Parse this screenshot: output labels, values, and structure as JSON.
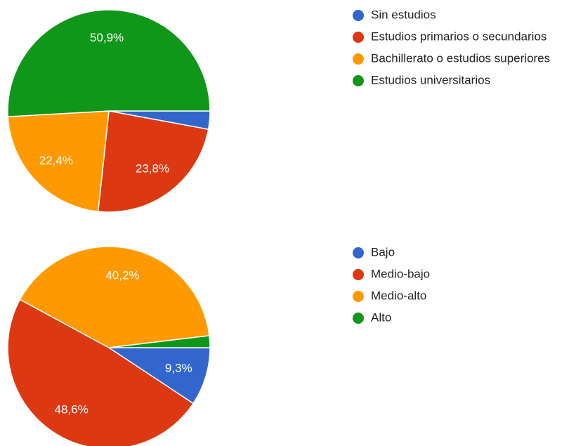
{
  "chart_data": [
    {
      "type": "pie",
      "categories": [
        "Sin estudios",
        "Estudios primarios o secundarios",
        "Bachillerato o estudios superiores",
        "Estudios universitarios"
      ],
      "values": [
        2.9,
        23.8,
        22.4,
        50.9
      ],
      "value_labels": [
        null,
        "23,8%",
        "22,4%",
        "50,9%"
      ],
      "colors": [
        "#3366cc",
        "#dc3912",
        "#ff9900",
        "#109618"
      ]
    },
    {
      "type": "pie",
      "categories": [
        "Bajo",
        "Medio-bajo",
        "Medio-alto",
        "Alto"
      ],
      "values": [
        9.3,
        48.6,
        40.2,
        1.9
      ],
      "value_labels": [
        "9,3%",
        "48,6%",
        "40,2%",
        null
      ],
      "colors": [
        "#3366cc",
        "#dc3912",
        "#ff9900",
        "#109618"
      ]
    }
  ]
}
